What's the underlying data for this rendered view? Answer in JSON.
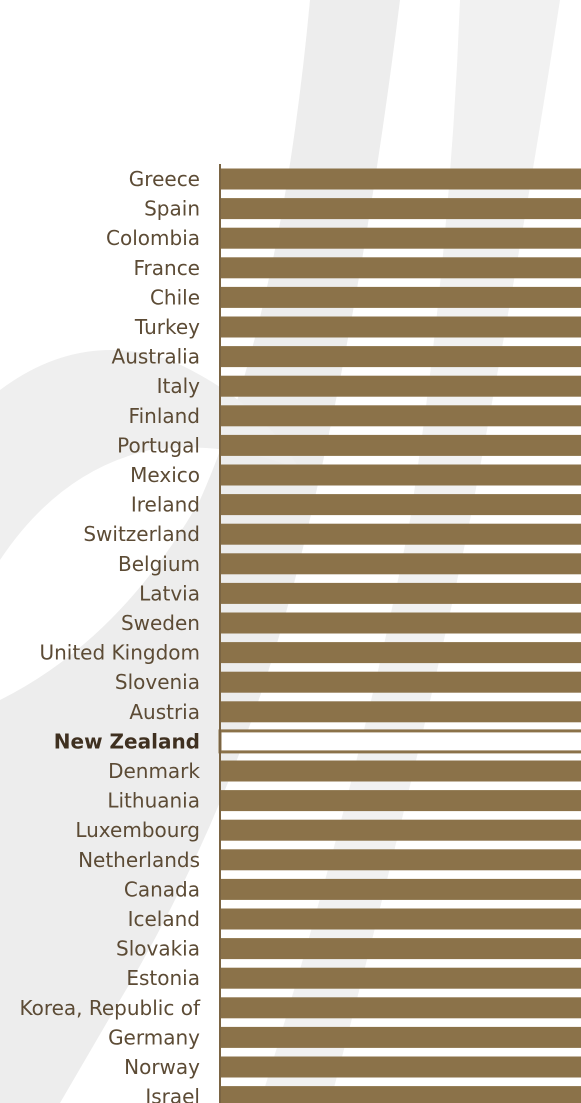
{
  "colors": {
    "bar": "#8b7249",
    "highlight_bar_outline": "#8b7249",
    "highlight_bar_fill": "#ffffff",
    "axis": "#7a6443",
    "label": "#5c4b35",
    "background_swoosh": "#ececec"
  },
  "chart_data": {
    "type": "bar",
    "orientation": "horizontal",
    "title": "",
    "xlabel": "",
    "ylabel": "",
    "highlight_category": "New Zealand",
    "categories": [
      "Greece",
      "Spain",
      "Colombia",
      "France",
      "Chile",
      "Turkey",
      "Australia",
      "Italy",
      "Finland",
      "Portugal",
      "Mexico",
      "Ireland",
      "Switzerland",
      "Belgium",
      "Latvia",
      "Sweden",
      "United Kingdom",
      "Slovenia",
      "Austria",
      "New Zealand",
      "Denmark",
      "Lithuania",
      "Luxembourg",
      "Netherlands",
      "Canada",
      "Iceland",
      "Slovakia",
      "Estonia",
      "Korea, Republic of",
      "Germany",
      "Norway",
      "Israel"
    ],
    "values": [
      100,
      100,
      100,
      100,
      100,
      100,
      100,
      100,
      100,
      100,
      100,
      100,
      100,
      100,
      100,
      100,
      100,
      100,
      100,
      100,
      100,
      100,
      100,
      100,
      100,
      100,
      100,
      100,
      100,
      100,
      100,
      100
    ],
    "grid": false,
    "legend": "none"
  }
}
